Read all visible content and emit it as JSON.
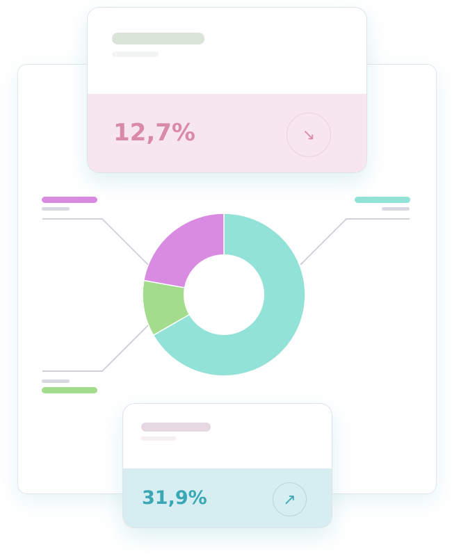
{
  "top_card": {
    "value": "12,7%",
    "trend_icon": "arrow-down-right",
    "accent": "#d98aa8",
    "band_color": "#f7e6ee"
  },
  "bottom_card": {
    "value": "31,9%",
    "trend_icon": "arrow-up-right",
    "accent": "#3aa7b5",
    "band_color": "#d6edf1"
  },
  "chart_data": {
    "type": "pie",
    "donut": true,
    "slices": [
      {
        "value": 66.7,
        "color": "#93e2d7"
      },
      {
        "value": 11.1,
        "color": "#a3dc8c"
      },
      {
        "value": 22.2,
        "color": "#d98be2"
      }
    ]
  }
}
